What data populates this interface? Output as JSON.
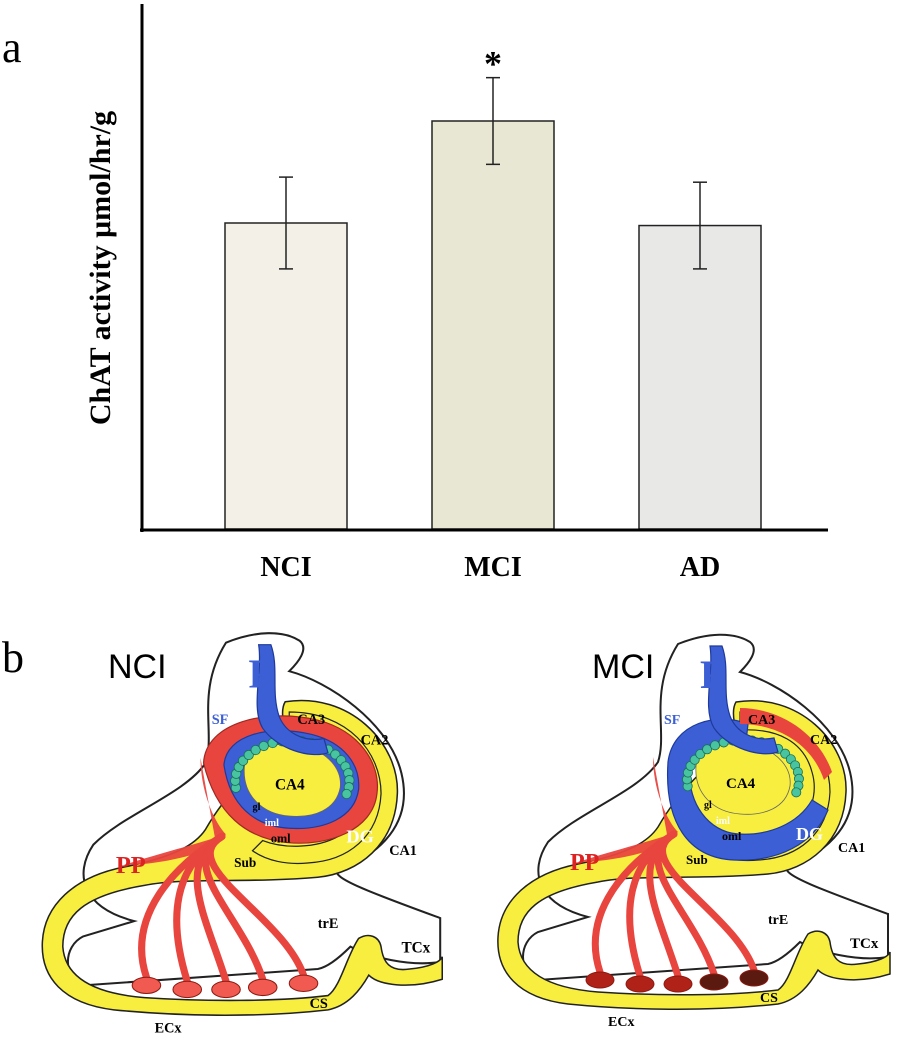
{
  "panel_a_label": "a",
  "panel_b_label": "b",
  "chart_data": {
    "type": "bar",
    "categories": [
      "NCI",
      "MCI",
      "AD"
    ],
    "values": [
      60,
      80,
      59.5
    ],
    "errors": [
      9,
      8.5,
      8.5
    ],
    "colors": [
      "#f3f1e7",
      "#e8e7d3",
      "#e8e9e7"
    ],
    "ylabel": "ChAT activity μmol/hr/g",
    "ylim": [
      0,
      100
    ],
    "yticks": "none",
    "grid": false,
    "annotations": [
      {
        "category": "MCI",
        "text": "*"
      }
    ]
  },
  "panel_b": {
    "left": {
      "title": "NCI",
      "labels": {
        "F": "F",
        "SF": "SF",
        "CA3": "CA3",
        "CA2": "CA2",
        "CA4": "CA4",
        "CA1": "CA1",
        "gl": "gl",
        "iml": "iml",
        "oml": "oml",
        "DG": "DG",
        "PP": "PP",
        "Sub": "Sub",
        "trE": "trE",
        "TCx": "TCx",
        "ECx": "ECx",
        "CS": "CS"
      }
    },
    "right": {
      "title": "MCI",
      "labels": {
        "F": "F",
        "SF": "SF",
        "CA3": "CA3",
        "CA2": "CA2",
        "CA4": "CA4",
        "CA1": "CA1",
        "gl": "gl",
        "iml": "iml",
        "oml": "oml",
        "DG": "DG",
        "PP": "PP",
        "Sub": "Sub",
        "trE": "trE",
        "TCx": "TCx",
        "ECx": "ECx",
        "CS": "CS"
      }
    },
    "colors": {
      "tissue": "#f7ee3f",
      "pp": "#e8453f",
      "blue": "#3c5fd6",
      "granule": "#48c4a0",
      "outline": "#222222"
    }
  }
}
